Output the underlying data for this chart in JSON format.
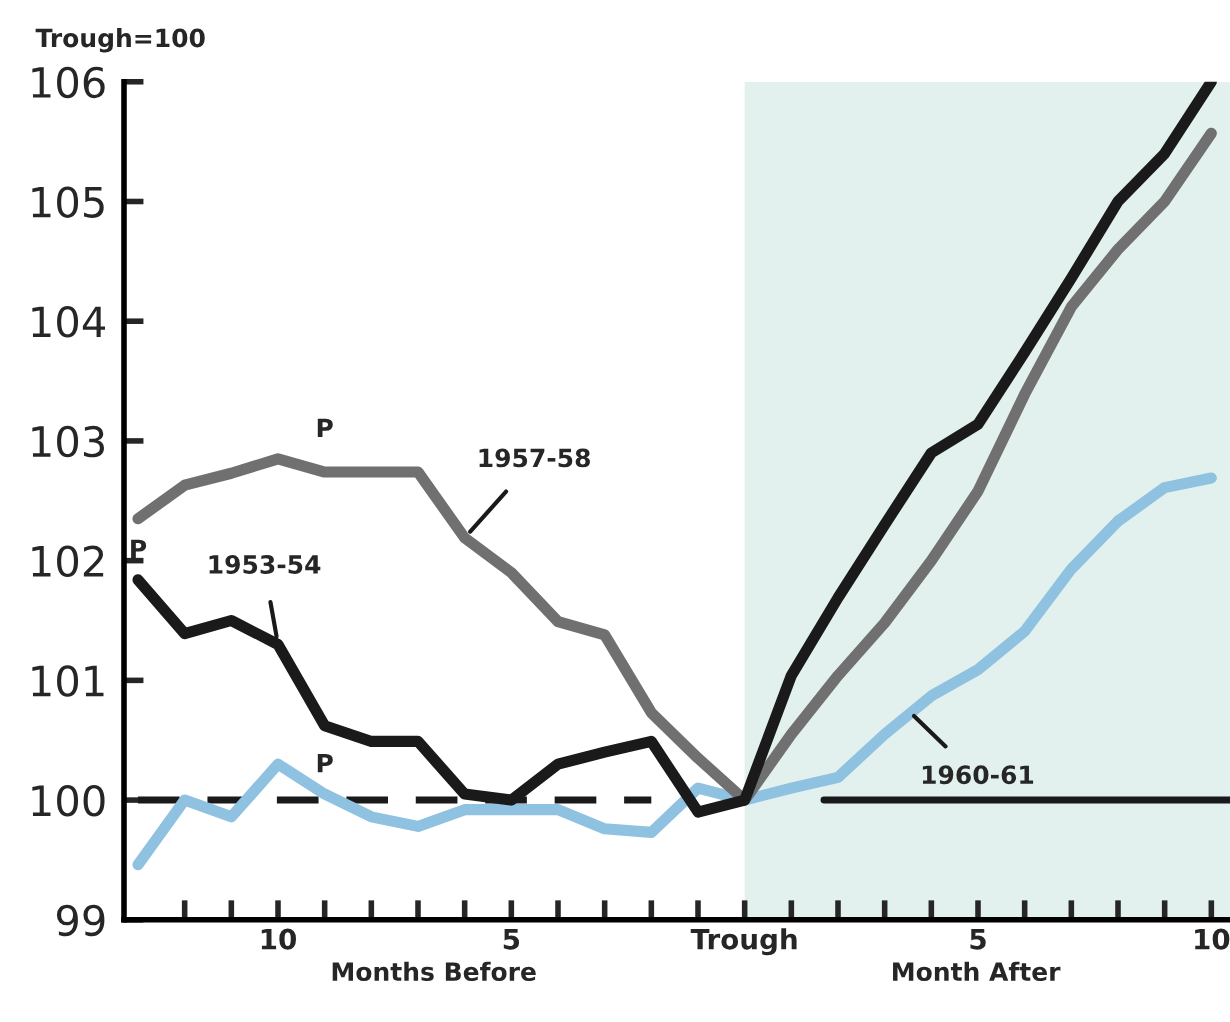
{
  "chart_data": {
    "type": "line",
    "ylabel": "Trough=100",
    "x": [
      -13,
      -12,
      -11,
      -10,
      -9,
      -8,
      -7,
      -6,
      -5,
      -4,
      -3,
      -2,
      -1,
      0,
      1,
      2,
      3,
      4,
      5,
      6,
      7,
      8,
      9,
      10
    ],
    "series": [
      {
        "color": "#1a1a1a",
        "values": [
          101.84,
          101.39,
          101.5,
          101.3,
          100.62,
          100.49,
          100.49,
          100.05,
          100.0,
          100.3,
          100.4,
          100.49,
          99.9,
          100.0,
          101.04,
          101.69,
          102.3,
          102.9,
          103.14,
          103.74,
          104.36,
          105.0,
          105.4,
          106.0
        ]
      },
      {
        "color": "#707070",
        "values": [
          102.35,
          102.63,
          102.73,
          102.85,
          102.74,
          102.74,
          102.74,
          102.19,
          101.9,
          101.49,
          101.38,
          100.73,
          100.35,
          100.0,
          100.55,
          101.04,
          101.48,
          102.0,
          102.58,
          103.39,
          104.12,
          104.6,
          105.0,
          105.57
        ]
      },
      {
        "color": "#8fc1e0",
        "values": [
          99.46,
          100.0,
          99.86,
          100.3,
          100.05,
          99.86,
          99.78,
          99.92,
          99.92,
          99.92,
          99.76,
          99.73,
          100.1,
          100.0,
          100.1,
          100.19,
          100.55,
          100.87,
          101.09,
          101.41,
          101.93,
          102.33,
          102.61,
          102.69
        ]
      },
      {
        "color": "#1a1a1a",
        "x": [
          -13,
          -2
        ],
        "values": [
          100,
          100
        ],
        "line_style": "dashed"
      },
      {
        "color": "#1a1a1a",
        "x": [
          1.7,
          10.4
        ],
        "values": [
          100,
          100
        ],
        "line_style": "solid"
      }
    ],
    "xlim": [
      -13.3,
      10.4
    ],
    "xticks": [
      {
        "value": -12,
        "label": null
      },
      {
        "value": -11,
        "label": null
      },
      {
        "value": -10,
        "label": "10"
      },
      {
        "value": -9,
        "label": null
      },
      {
        "value": -8,
        "label": null
      },
      {
        "value": -7,
        "label": null
      },
      {
        "value": -6,
        "label": null
      },
      {
        "value": -5,
        "label": "5"
      },
      {
        "value": -4,
        "label": null
      },
      {
        "value": -3,
        "label": null
      },
      {
        "value": -2,
        "label": null
      },
      {
        "value": -1,
        "label": null
      },
      {
        "value": 0,
        "label": "Trough"
      },
      {
        "value": 1,
        "label": null
      },
      {
        "value": 2,
        "label": null
      },
      {
        "value": 3,
        "label": null
      },
      {
        "value": 4,
        "label": null
      },
      {
        "value": 5,
        "label": "5"
      },
      {
        "value": 6,
        "label": null
      },
      {
        "value": 7,
        "label": null
      },
      {
        "value": 8,
        "label": null
      },
      {
        "value": 9,
        "label": null
      },
      {
        "value": 10,
        "label": "10"
      }
    ],
    "ylim": [
      99,
      106
    ],
    "yticks": [
      99,
      100,
      101,
      102,
      103,
      104,
      105,
      106
    ],
    "bands": [
      {
        "axis": "x",
        "from": 0,
        "to": 10.4,
        "color": "#e2f1ee"
      }
    ],
    "annotations": [
      {
        "text": "P",
        "x": -13,
        "y": 101.84
      },
      {
        "text": "P",
        "x": -9,
        "y": 102.85
      },
      {
        "text": "P",
        "x": -9,
        "y": 100.05
      },
      {
        "text": "1953-54",
        "x": -10,
        "y": 101.3
      },
      {
        "text": "1957-58",
        "x": -6,
        "y": 102.19
      },
      {
        "text": "1960-61",
        "x": 3.5,
        "y": 100.75
      },
      "Months Before",
      "Month After"
    ],
    "grid": false,
    "legend": false,
    "line_style": "solid",
    "marker": "none"
  }
}
